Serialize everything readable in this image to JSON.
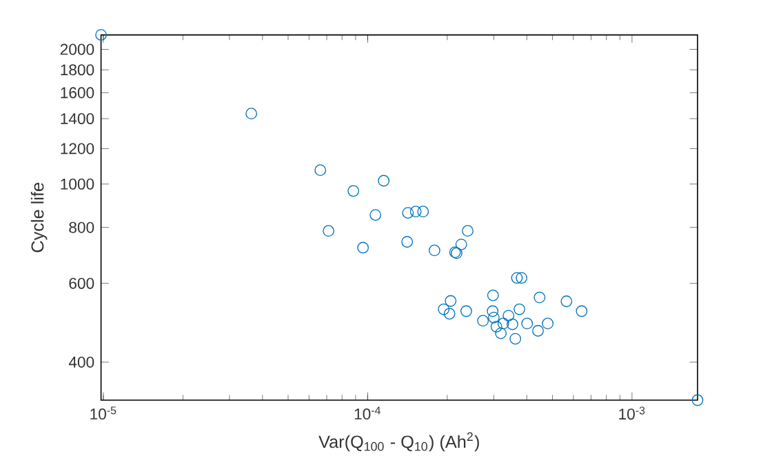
{
  "chart_data": {
    "type": "scatter",
    "xlabel": "Var(Q$_{100}$  -  Q$_{10}$)  (Ah$^{2}$)",
    "ylabel": "Cycle life",
    "log": "xy",
    "marker": "circle",
    "grid": false,
    "xlim": [
      9.8e-06,
      0.00177
    ],
    "ylim": [
      329,
      2154
    ],
    "xticks": [
      {
        "value": 1e-05,
        "label": "10$^{-5}$"
      },
      {
        "value": 0.0001,
        "label": "10$^{-4}$"
      },
      {
        "value": 0.001,
        "label": "10$^{-3}$"
      }
    ],
    "yticks": [
      400,
      600,
      800,
      1000,
      1200,
      1400,
      1600,
      1800,
      2000
    ],
    "series": [
      {
        "color": "#0072bd",
        "x": [
          9.8e-06,
          3.63e-05,
          6.62e-05,
          8.83e-05,
          0.000115,
          7.11e-05,
          9.6e-05,
          0.000107,
          0.000142,
          0.000152,
          0.000162,
          0.000141,
          0.000179,
          0.000214,
          0.000217,
          0.000226,
          0.000239,
          0.000367,
          0.000382,
          0.000298,
          0.000447,
          0.000565,
          0.000645,
          0.000206,
          0.000194,
          0.000204,
          0.000236,
          0.000297,
          0.000375,
          0.000273,
          0.0003,
          0.000326,
          0.000307,
          0.000341,
          0.000353,
          0.000319,
          0.000362,
          0.000401,
          0.000441,
          0.00048,
          0.00177
        ],
        "values": [
          2154,
          1437,
          1074,
          965,
          1017,
          786,
          721,
          853,
          862,
          868,
          868,
          743,
          711,
          704,
          701,
          733,
          786,
          617,
          617,
          564,
          558,
          547,
          520,
          548,
          525,
          513,
          520,
          520,
          525,
          495,
          503,
          488,
          480,
          508,
          486,
          464,
          451,
          488,
          470,
          488,
          329
        ]
      }
    ]
  }
}
